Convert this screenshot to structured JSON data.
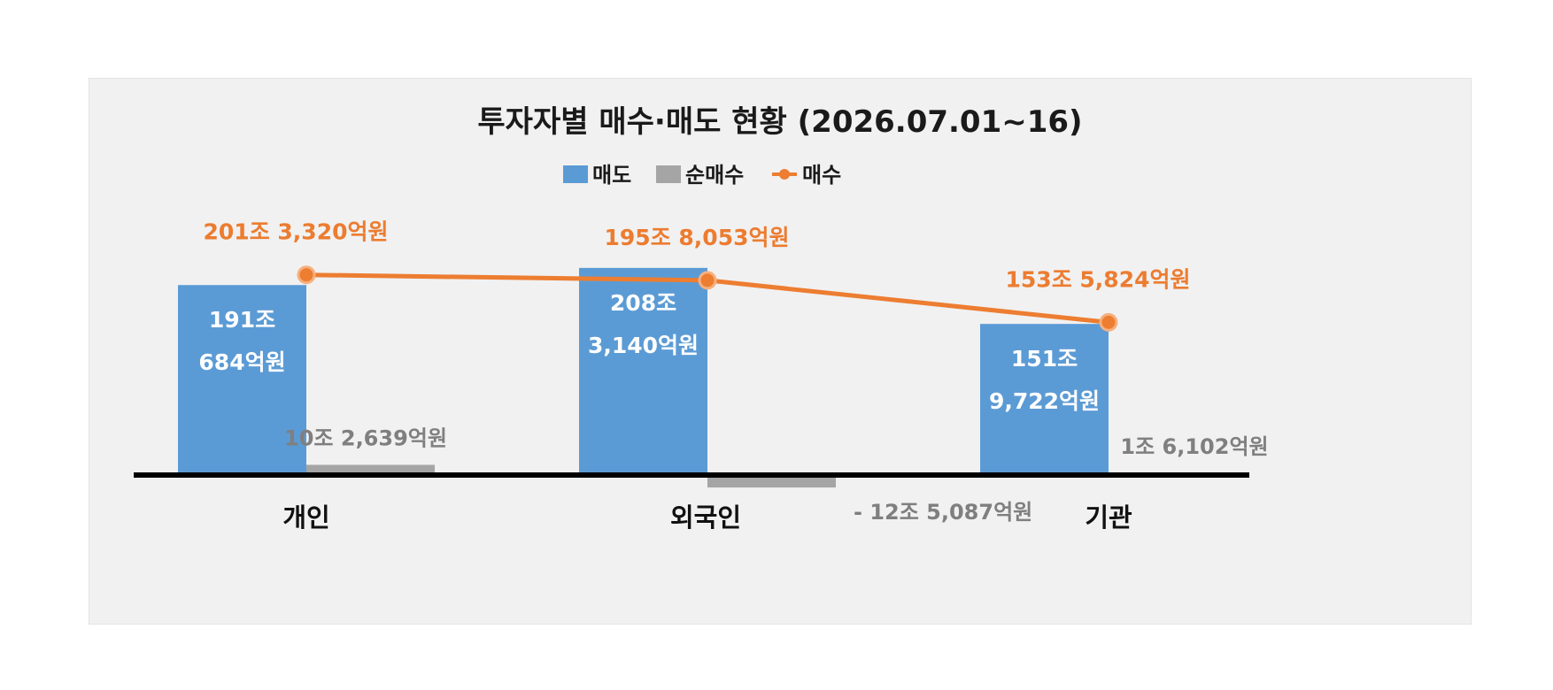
{
  "chart_data": {
    "type": "bar",
    "title": "투자자별 매수·매도 현황 (2026.07.01~16)",
    "categories": [
      "개인",
      "외국인",
      "기관"
    ],
    "units": "억원",
    "legend": {
      "placement": "top",
      "entries": [
        "매도",
        "순매수",
        "매수"
      ]
    },
    "series": [
      {
        "name": "매도",
        "kind": "bar",
        "values": [
          1910684,
          2083140,
          1519722
        ],
        "labels": [
          [
            "191조",
            "684억원"
          ],
          [
            "208조",
            "3,140억원"
          ],
          [
            "151조",
            "9,722억원"
          ]
        ]
      },
      {
        "name": "순매수",
        "kind": "bar",
        "values": [
          102639,
          -125087,
          16102
        ],
        "labels": [
          "10조 2,639억원",
          "- 12조 5,087억원",
          "1조 6,102억원"
        ]
      },
      {
        "name": "매수",
        "kind": "line",
        "values": [
          2013320,
          1958053,
          1535824
        ],
        "labels": [
          "201조 3,320억원",
          "195조 8,053억원",
          "153조 5,824억원"
        ]
      }
    ],
    "ylim": [
      -140000,
      2250000
    ],
    "grid": false
  },
  "colors": {
    "sell": "#5b9bd5",
    "net": "#a5a5a5",
    "buy": "#ed7d31",
    "axis": "#000000"
  }
}
